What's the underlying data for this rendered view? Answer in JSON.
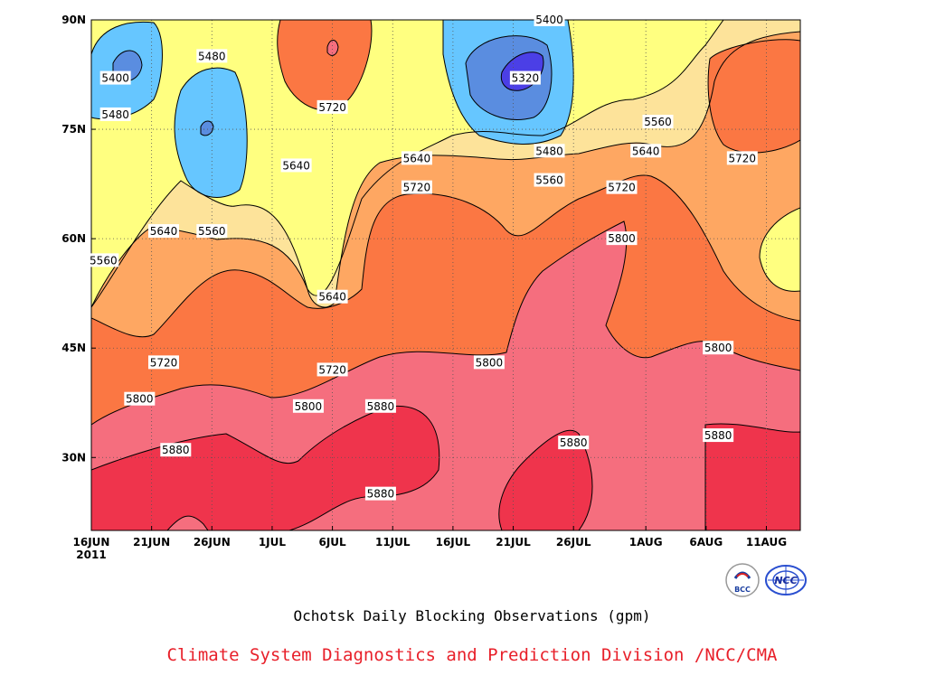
{
  "colors": {
    "band_lt_5320": "#4b3fe6",
    "band_5320_5400": "#5a8de0",
    "band_5400_5480": "#66c6ff",
    "band_5480_5560": "#ffff80",
    "band_5560_5640": "#fde39a",
    "band_5640_5720": "#fea762",
    "band_5720_5800": "#fb7743",
    "band_5800_5880": "#f56e7e",
    "band_gt_5880": "#ef344c",
    "caption_red": "#e8202a",
    "contour_line": "#000000"
  },
  "chart_data": {
    "type": "contour",
    "title": "Ochotsk Daily Blocking Observations (gpm)",
    "credit": "Climate System Diagnostics and Prediction Division /NCC/CMA",
    "x_ticks": [
      "16JUN",
      "21JUN",
      "26JUN",
      "1JUL",
      "6JUL",
      "11JUL",
      "16JUL",
      "21JUL",
      "26JUL",
      "1AUG",
      "6AUG",
      "11AUG"
    ],
    "x_year": "2011",
    "x_range": [
      "16JUN2011",
      "13AUG2011"
    ],
    "y_ticks": [
      "30N",
      "45N",
      "60N",
      "75N",
      "90N"
    ],
    "y_range_deg": [
      20,
      90
    ],
    "units": "gpm",
    "contour_levels": [
      5320,
      5400,
      5480,
      5560,
      5640,
      5720,
      5800,
      5880
    ],
    "contour_labels": [
      {
        "text": "5400",
        "date": "18JUN",
        "lat": 82
      },
      {
        "text": "5480",
        "date": "18JUN",
        "lat": 77
      },
      {
        "text": "5480",
        "date": "26JUN",
        "lat": 85
      },
      {
        "text": "5640",
        "date": "22JUN",
        "lat": 61
      },
      {
        "text": "5560",
        "date": "26JUN",
        "lat": 61
      },
      {
        "text": "5560",
        "date": "17JUN",
        "lat": 57
      },
      {
        "text": "5720",
        "date": "6JUL",
        "lat": 78
      },
      {
        "text": "5640",
        "date": "3JUL",
        "lat": 70
      },
      {
        "text": "5640",
        "date": "6JUL",
        "lat": 52
      },
      {
        "text": "5720",
        "date": "22JUN",
        "lat": 43
      },
      {
        "text": "5720",
        "date": "6JUL",
        "lat": 42
      },
      {
        "text": "5800",
        "date": "20JUN",
        "lat": 38
      },
      {
        "text": "5800",
        "date": "4JUL",
        "lat": 37
      },
      {
        "text": "5880",
        "date": "23JUN",
        "lat": 31
      },
      {
        "text": "5880",
        "date": "10JUL",
        "lat": 37
      },
      {
        "text": "5880",
        "date": "10JUL",
        "lat": 25
      },
      {
        "text": "5640",
        "date": "13JUL",
        "lat": 71
      },
      {
        "text": "5720",
        "date": "13JUL",
        "lat": 67
      },
      {
        "text": "5400",
        "date": "24JUL",
        "lat": 90
      },
      {
        "text": "5320",
        "date": "22JUL",
        "lat": 82
      },
      {
        "text": "5480",
        "date": "24JUL",
        "lat": 72
      },
      {
        "text": "5560",
        "date": "24JUL",
        "lat": 68
      },
      {
        "text": "5800",
        "date": "19JUL",
        "lat": 43
      },
      {
        "text": "5880",
        "date": "26JUL",
        "lat": 32
      },
      {
        "text": "5560",
        "date": "2AUG",
        "lat": 76
      },
      {
        "text": "5640",
        "date": "1AUG",
        "lat": 72
      },
      {
        "text": "5720",
        "date": "30JUL",
        "lat": 67
      },
      {
        "text": "5800",
        "date": "30JUL",
        "lat": 60
      },
      {
        "text": "5720",
        "date": "9AUG",
        "lat": 71
      },
      {
        "text": "5800",
        "date": "7AUG",
        "lat": 45
      },
      {
        "text": "5880",
        "date": "7AUG",
        "lat": 33
      }
    ]
  },
  "logos": {
    "left": {
      "icon": "bcc-logo",
      "text": "BCC"
    },
    "right": {
      "icon": "ncc-logo",
      "text": "NCC"
    }
  }
}
